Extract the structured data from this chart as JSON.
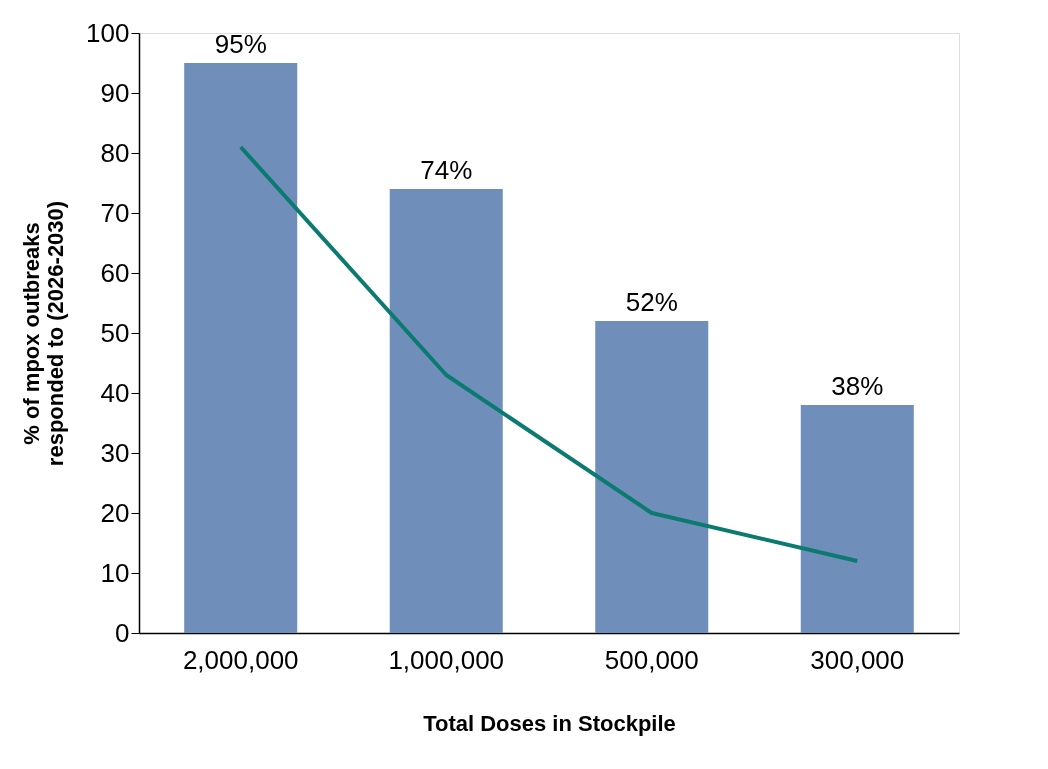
{
  "chart_data": {
    "type": "bar",
    "xlabel": "Total Doses in Stockpile",
    "ylabel": "% of mpox outbreaks responded to (2026-2030)",
    "categories": [
      "2,000,000",
      "1,000,000",
      "500,000",
      "300,000"
    ],
    "series": [
      {
        "color": "#6f8fba",
        "values": [
          95,
          74,
          52,
          38
        ],
        "value_labels": [
          "95%",
          "74%",
          "52%",
          "38%"
        ]
      },
      {
        "type": "line",
        "color": "#0b7a70",
        "values": [
          81,
          43,
          20,
          12
        ]
      }
    ],
    "ylim": [
      0,
      100
    ],
    "yticks": [
      0,
      10,
      20,
      30,
      40,
      50,
      60,
      70,
      80,
      90,
      100
    ],
    "grid": false,
    "legend": false
  }
}
